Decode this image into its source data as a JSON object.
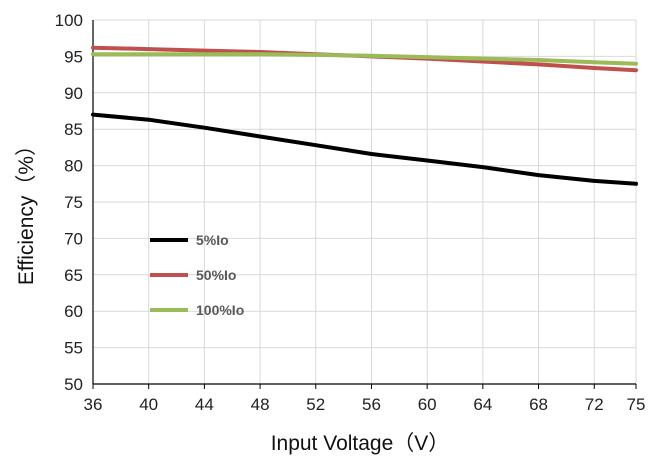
{
  "chart_data": {
    "type": "line",
    "xlabel": "Input Voltage（V）",
    "ylabel": "Efficiency（%）",
    "x_ticks": [
      36,
      40,
      44,
      48,
      52,
      56,
      60,
      64,
      68,
      72,
      75
    ],
    "y_ticks": [
      50,
      55,
      60,
      65,
      70,
      75,
      80,
      85,
      90,
      95,
      100
    ],
    "xlim": [
      36,
      75
    ],
    "ylim": [
      50,
      100
    ],
    "grid": true,
    "legend_position": "left-middle",
    "series": [
      {
        "name": "5%Io",
        "color": "#000000",
        "x": [
          36,
          40,
          44,
          48,
          52,
          56,
          60,
          64,
          68,
          72,
          75
        ],
        "values": [
          87.0,
          86.3,
          85.2,
          84.0,
          82.8,
          81.6,
          80.7,
          79.8,
          78.7,
          77.9,
          77.5
        ]
      },
      {
        "name": "50%Io",
        "color": "#C0504D",
        "x": [
          36,
          40,
          44,
          48,
          52,
          56,
          60,
          64,
          68,
          72,
          75
        ],
        "values": [
          96.2,
          96.0,
          95.8,
          95.6,
          95.3,
          95.0,
          94.7,
          94.3,
          93.9,
          93.4,
          93.1
        ]
      },
      {
        "name": "100%Io",
        "color": "#9BBB59",
        "x": [
          36,
          40,
          44,
          48,
          52,
          56,
          60,
          64,
          68,
          72,
          75
        ],
        "values": [
          95.3,
          95.3,
          95.3,
          95.3,
          95.2,
          95.1,
          94.9,
          94.7,
          94.5,
          94.2,
          94.0
        ]
      }
    ]
  }
}
